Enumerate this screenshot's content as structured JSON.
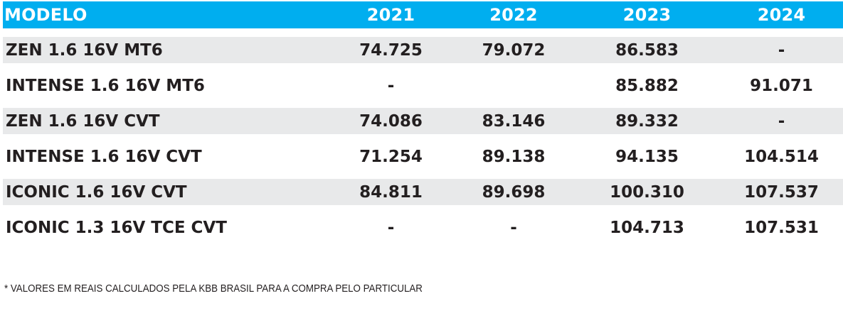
{
  "table": {
    "headers": [
      "MODELO",
      "2021",
      "2022",
      "2023",
      "2024"
    ],
    "rows": [
      {
        "model": "ZEN 1.6 16V MT6",
        "y2021": "74.725",
        "y2022": "79.072",
        "y2023": "86.583",
        "y2024": "-"
      },
      {
        "model": "INTENSE 1.6 16V MT6",
        "y2021": "-",
        "y2022": "",
        "y2023": "85.882",
        "y2024": "91.071"
      },
      {
        "model": "ZEN 1.6 16V CVT",
        "y2021": "74.086",
        "y2022": "83.146",
        "y2023": "89.332",
        "y2024": "-"
      },
      {
        "model": "INTENSE 1.6 16V CVT",
        "y2021": "71.254",
        "y2022": "89.138",
        "y2023": "94.135",
        "y2024": "104.514"
      },
      {
        "model": "ICONIC 1.6 16V CVT",
        "y2021": "84.811",
        "y2022": "89.698",
        "y2023": "100.310",
        "y2024": "107.537"
      },
      {
        "model": "ICONIC 1.3 16V TCE CVT",
        "y2021": "-",
        "y2022": "-",
        "y2023": "104.713",
        "y2024": "107.531"
      }
    ]
  },
  "footnote": "* VALORES EM REAIS CALCULADOS PELA KBB BRASIL PARA A COMPRA PELO PARTICULAR",
  "colors": {
    "header_bg": "#00AEEF",
    "header_text": "#FFFFFF",
    "shade_row": "#E8E9EA",
    "text": "#231F20"
  }
}
